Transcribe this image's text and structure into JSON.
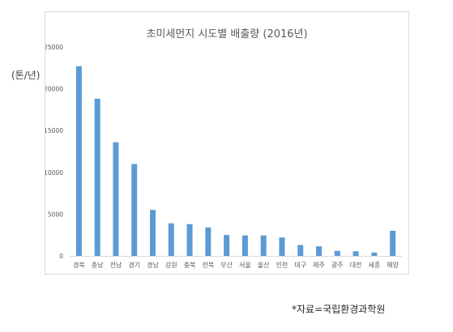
{
  "unit_label": "(톤/년)",
  "source_note": "*자료=국립환경과학원",
  "chart_data": {
    "type": "bar",
    "title": "초미세먼지 시도별 배출량 (2016년)",
    "xlabel": "",
    "ylabel": "(톤/년)",
    "ylim": [
      0,
      25000
    ],
    "yticks": [
      0,
      5000,
      10000,
      15000,
      20000,
      25000
    ],
    "ytick_labels": [
      "0",
      "5000",
      "10000",
      "15000",
      "20000",
      "25000"
    ],
    "grid": false,
    "legend": "none",
    "bar_color": "#5b9bd5",
    "categories": [
      "경북",
      "충남",
      "전남",
      "경기",
      "경남",
      "강원",
      "충북",
      "전북",
      "부산",
      "서울",
      "울산",
      "인천",
      "대구",
      "제주",
      "광주",
      "대전",
      "세종",
      "해양"
    ],
    "values": [
      22700,
      18800,
      13600,
      11000,
      5500,
      3900,
      3800,
      3400,
      2500,
      2450,
      2450,
      2200,
      1300,
      1150,
      600,
      550,
      400,
      3000
    ]
  }
}
